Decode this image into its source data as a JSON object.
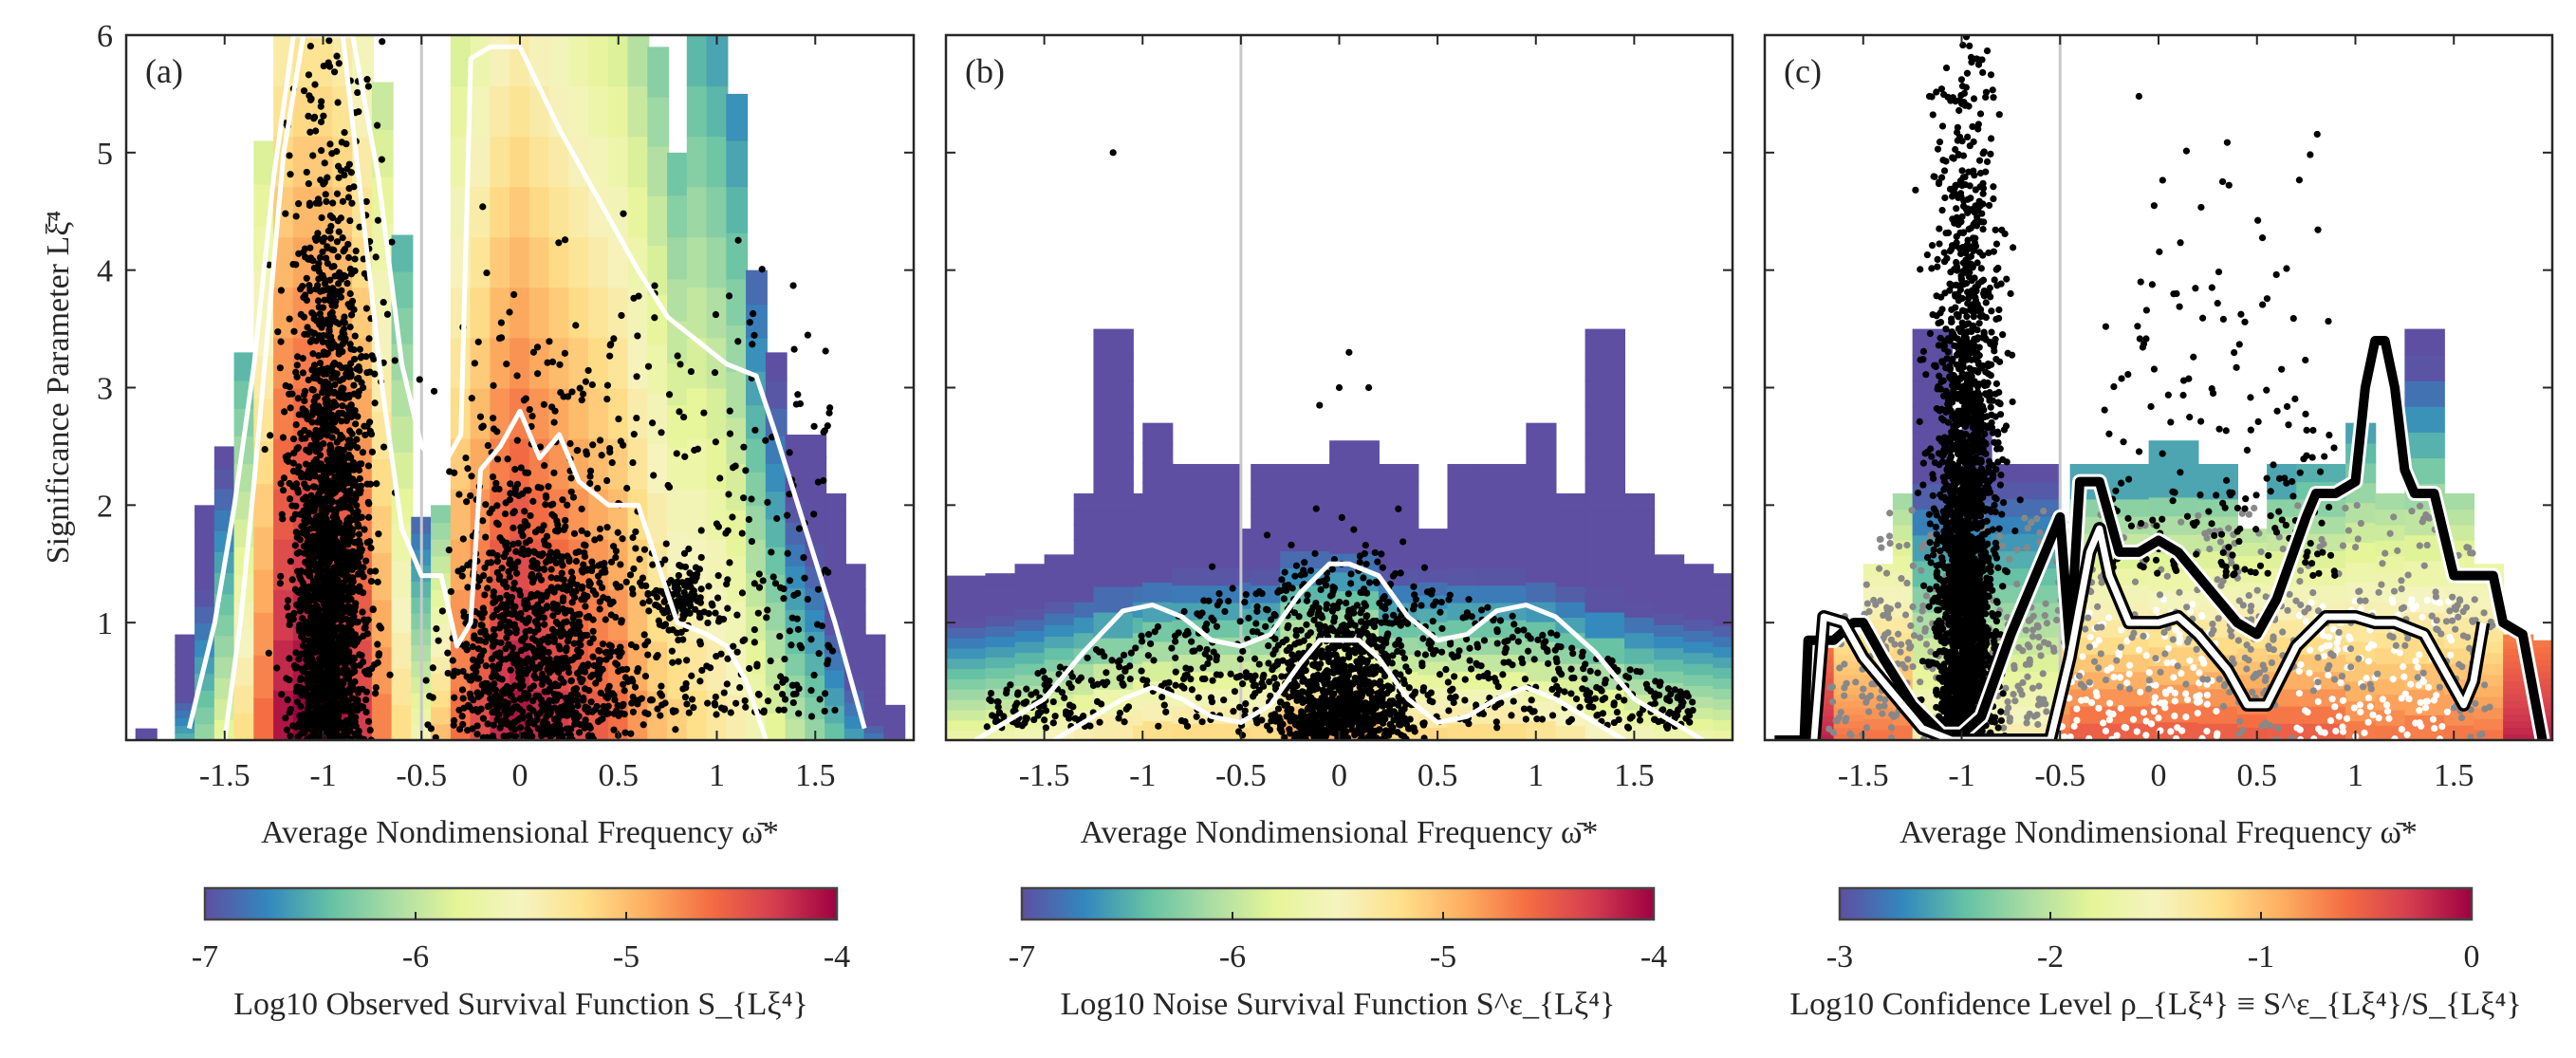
{
  "figure": {
    "ylabel": "Significance Parameter Lξ̄⁴",
    "xlabel": "Average Nondimensional Frequency ω̄*"
  },
  "chart_data": [
    {
      "type": "heatmap",
      "panel": "(a)",
      "title": "",
      "xlabel": "Average Nondimensional Frequency ω̄*",
      "ylabel": "Significance Parameter Lξ̄⁴",
      "xlim": [
        -2,
        2
      ],
      "ylim": [
        0,
        6
      ],
      "xticks": [
        -1.5,
        -1,
        -0.5,
        0,
        0.5,
        1,
        1.5
      ],
      "xtick_labels": [
        "-1.5",
        "-1",
        "-0.5",
        "0",
        "0.5",
        "1",
        "1.5"
      ],
      "yticks": [
        1,
        2,
        3,
        4,
        5,
        6
      ],
      "ytick_labels": [
        "1",
        "2",
        "3",
        "4",
        "5",
        "6"
      ],
      "reference_line_x": -0.5,
      "grid": false,
      "colorbar": {
        "label": "Log10 Observed Survival Function S_{Lξ⁴}",
        "ticks": [
          -7,
          -6,
          -5,
          -4
        ],
        "tick_labels": [
          "-7",
          "-6",
          "-5",
          "-4"
        ],
        "range": [
          -7,
          -4
        ],
        "colormap": "spectral_r"
      },
      "support_envelope": {
        "x": [
          -1.9,
          -1.7,
          -1.6,
          -1.5,
          -1.4,
          -1.3,
          -1.2,
          -1.1,
          -1.0,
          -0.9,
          -0.8,
          -0.7,
          -0.6,
          -0.5,
          -0.4,
          -0.3,
          -0.2,
          -0.1,
          0.0,
          0.1,
          0.2,
          0.3,
          0.4,
          0.5,
          0.6,
          0.7,
          0.8,
          0.9,
          1.0,
          1.1,
          1.2,
          1.3,
          1.4,
          1.5,
          1.6,
          1.7,
          1.8,
          1.9
        ],
        "ymax": [
          0.1,
          0.9,
          2.0,
          2.5,
          3.3,
          5.1,
          6.0,
          6.0,
          6.0,
          6.0,
          6.0,
          5.6,
          4.3,
          1.9,
          2.0,
          6.0,
          6.0,
          6.0,
          6.0,
          6.0,
          6.0,
          6.0,
          6.0,
          6.0,
          6.0,
          5.9,
          5.0,
          6.0,
          6.0,
          5.5,
          4.0,
          3.3,
          2.6,
          2.6,
          2.1,
          1.5,
          0.9,
          0.3
        ]
      },
      "colormap_columns_log10": [
        -6.8,
        -6.5,
        -6.2,
        -5.8,
        -5.2,
        -4.6,
        -4.1,
        -4.0,
        -4.0,
        -4.1,
        -4.3,
        -4.7,
        -5.2,
        -5.6,
        -5.0,
        -4.6,
        -4.4,
        -4.2,
        -4.1,
        -4.2,
        -4.3,
        -4.4,
        -4.5,
        -4.6,
        -4.8,
        -5.0,
        -5.1,
        -5.2,
        -5.3,
        -5.4,
        -5.6,
        -5.8,
        -6.0,
        -6.2,
        -6.4,
        -6.6,
        -6.8,
        -6.9
      ],
      "contours": [
        {
          "level": -6,
          "x": [
            -1.68,
            -1.55,
            -1.45,
            -1.35,
            -1.25,
            -1.15,
            -1.0,
            -0.85,
            -0.72,
            -0.6,
            -0.5,
            -0.4,
            -0.3,
            -0.25,
            -0.15,
            0.0,
            0.2,
            0.4,
            0.6,
            0.75,
            0.9,
            1.05,
            1.2,
            1.3,
            1.45,
            1.6,
            1.75
          ],
          "y": [
            0.1,
            1.0,
            2.0,
            3.2,
            4.8,
            6.0,
            6.0,
            6.0,
            4.8,
            3.2,
            2.5,
            2.3,
            2.6,
            5.8,
            5.9,
            5.9,
            5.2,
            4.6,
            4.0,
            3.6,
            3.4,
            3.2,
            3.1,
            2.6,
            1.8,
            1.0,
            0.1
          ]
        },
        {
          "level": -5,
          "x": [
            -1.5,
            -1.42,
            -1.35,
            -1.28,
            -1.2,
            -1.1,
            -0.9,
            -0.8,
            -0.7,
            -0.6,
            -0.5,
            -0.4,
            -0.32,
            -0.25,
            -0.2,
            -0.1,
            0.0,
            0.1,
            0.2,
            0.3,
            0.45,
            0.6,
            0.7,
            0.8,
            0.95,
            1.05,
            1.15,
            1.25
          ],
          "y": [
            0.0,
            1.0,
            2.2,
            3.5,
            5.0,
            6.0,
            6.0,
            4.5,
            3.0,
            1.8,
            1.4,
            1.4,
            0.8,
            1.0,
            2.3,
            2.5,
            2.8,
            2.4,
            2.6,
            2.2,
            2.0,
            2.0,
            1.5,
            1.0,
            0.9,
            0.8,
            0.5,
            0.0
          ]
        }
      ],
      "scatter_note": "dense black points concentrated at x≈-1 (0–6) and x≈0 to 0.3 (0–3), sparse elsewhere"
    },
    {
      "type": "heatmap",
      "panel": "(b)",
      "xlabel": "Average Nondimensional Frequency ω̄*",
      "xlim": [
        -2,
        2
      ],
      "ylim": [
        0,
        6
      ],
      "xticks": [
        -1.5,
        -1,
        -0.5,
        0,
        0.5,
        1,
        1.5
      ],
      "xtick_labels": [
        "-1.5",
        "-1",
        "-0.5",
        "0",
        "0.5",
        "1",
        "1.5"
      ],
      "yticks": [
        1,
        2,
        3,
        4,
        5,
        6
      ],
      "reference_line_x": -0.5,
      "grid": false,
      "colorbar": {
        "label": "Log10 Noise Survival Function S^ε_{Lξ⁴}",
        "ticks": [
          -7,
          -6,
          -5,
          -4
        ],
        "tick_labels": [
          "-7",
          "-6",
          "-5",
          "-4"
        ],
        "range": [
          -7,
          -4
        ],
        "colormap": "spectral_r"
      },
      "support_envelope": {
        "x_edges": [
          -2.0,
          -1.8,
          -1.65,
          -1.5,
          -1.35,
          -1.25,
          -1.05,
          -1.0,
          -0.85,
          -0.72,
          -0.5,
          -0.45,
          -0.3,
          -0.05,
          0.2,
          0.4,
          0.55,
          0.7,
          0.95,
          1.1,
          1.25,
          1.45,
          1.6,
          1.75,
          1.9,
          2.0
        ],
        "ymax": [
          1.4,
          1.42,
          1.5,
          1.58,
          2.1,
          3.5,
          2.1,
          2.7,
          2.35,
          2.35,
          1.8,
          2.35,
          2.35,
          2.55,
          2.35,
          1.8,
          2.35,
          2.35,
          2.7,
          2.1,
          3.5,
          2.1,
          1.58,
          1.5,
          1.42,
          1.4
        ]
      },
      "contours": [
        {
          "level": -6,
          "x": [
            -1.85,
            -1.7,
            -1.5,
            -1.3,
            -1.1,
            -0.95,
            -0.8,
            -0.65,
            -0.5,
            -0.35,
            -0.2,
            -0.05,
            0.05,
            0.2,
            0.35,
            0.5,
            0.65,
            0.8,
            0.95,
            1.1,
            1.3,
            1.5,
            1.7,
            1.85
          ],
          "y": [
            0.0,
            0.15,
            0.35,
            0.75,
            1.1,
            1.15,
            1.05,
            0.85,
            0.8,
            0.9,
            1.25,
            1.5,
            1.5,
            1.4,
            1.05,
            0.85,
            0.9,
            1.1,
            1.15,
            1.05,
            0.75,
            0.35,
            0.15,
            0.0
          ]
        },
        {
          "level": -5,
          "x": [
            -1.45,
            -1.3,
            -1.1,
            -0.95,
            -0.8,
            -0.65,
            -0.5,
            -0.35,
            -0.2,
            -0.1,
            0.0,
            0.1,
            0.2,
            0.35,
            0.5,
            0.65,
            0.8,
            0.95,
            1.1,
            1.3,
            1.45
          ],
          "y": [
            0.0,
            0.15,
            0.35,
            0.45,
            0.35,
            0.2,
            0.15,
            0.3,
            0.65,
            0.85,
            0.85,
            0.85,
            0.7,
            0.35,
            0.15,
            0.2,
            0.35,
            0.45,
            0.35,
            0.15,
            0.0
          ]
        }
      ],
      "scatter_note": "dense black points near x≈0 (0–1.5), spread cloud from -1.8 to 1.8 below y≈2.5, outlier at (-1.15, 5.0)"
    },
    {
      "type": "heatmap",
      "panel": "(c)",
      "xlabel": "Average Nondimensional Frequency ω̄*",
      "xlim": [
        -2,
        2
      ],
      "ylim": [
        0,
        6
      ],
      "xticks": [
        -1.5,
        -1,
        -0.5,
        0,
        0.5,
        1,
        1.5
      ],
      "xtick_labels": [
        "-1.5",
        "-1",
        "-0.5",
        "0",
        "0.5",
        "1",
        "1.5"
      ],
      "yticks": [
        1,
        2,
        3,
        4,
        5,
        6
      ],
      "reference_line_x": -0.5,
      "grid": false,
      "colorbar": {
        "label": "Log10 Confidence Level ρ_{Lξ⁴} ≡ S^ε_{Lξ⁴}/S_{Lξ⁴}",
        "ticks": [
          -3,
          -2,
          -1,
          0
        ],
        "tick_labels": [
          "-3",
          "-2",
          "-1",
          "0"
        ],
        "range": [
          -3,
          0
        ],
        "colormap": "spectral_r"
      },
      "support_envelope": {
        "x_edges": [
          -2.0,
          -1.8,
          -1.65,
          -1.5,
          -1.35,
          -1.25,
          -1.05,
          -1.0,
          -0.85,
          -0.72,
          -0.5,
          -0.45,
          -0.3,
          -0.05,
          0.2,
          0.4,
          0.55,
          0.7,
          0.95,
          1.1,
          1.25,
          1.45,
          1.6,
          1.75,
          1.9,
          2.0
        ],
        "ymax": [
          0.0,
          0.85,
          0.9,
          1.5,
          2.1,
          3.5,
          2.1,
          2.7,
          2.35,
          2.35,
          1.8,
          2.35,
          2.35,
          2.55,
          2.35,
          1.8,
          2.35,
          2.35,
          2.7,
          2.1,
          3.5,
          2.1,
          1.5,
          0.9,
          0.85,
          0.0
        ]
      },
      "contours": [
        {
          "level": -2,
          "color": "#000000",
          "x": [
            -1.95,
            -1.8,
            -1.78,
            -1.65,
            -1.55,
            -1.5,
            -1.4,
            -1.25,
            -1.1,
            -1.0,
            -0.9,
            -0.75,
            -0.6,
            -0.5,
            -0.45,
            -0.4,
            -0.3,
            -0.2,
            -0.1,
            0.0,
            0.1,
            0.2,
            0.3,
            0.4,
            0.5,
            0.6,
            0.75,
            0.8,
            0.9,
            1.0,
            1.05,
            1.1,
            1.15,
            1.2,
            1.25,
            1.3,
            1.4,
            1.5,
            1.55,
            1.7,
            1.75,
            1.85,
            1.95
          ],
          "y": [
            0.0,
            0.0,
            0.85,
            0.85,
            1.0,
            1.0,
            0.7,
            0.3,
            0.05,
            0.05,
            0.2,
            0.9,
            1.5,
            1.9,
            0.8,
            2.2,
            2.2,
            1.6,
            1.6,
            1.7,
            1.6,
            1.4,
            1.2,
            1.0,
            0.9,
            1.2,
            1.9,
            2.1,
            2.1,
            2.2,
            3.0,
            3.4,
            3.4,
            3.0,
            2.3,
            2.1,
            2.1,
            1.4,
            1.4,
            1.4,
            1.0,
            0.9,
            0.0
          ]
        },
        {
          "level": -1,
          "color": "#ffffff",
          "x": [
            -1.75,
            -1.7,
            -1.6,
            -1.5,
            -1.35,
            -1.2,
            -1.05,
            -0.55,
            -0.45,
            -0.35,
            -0.3,
            -0.25,
            -0.15,
            0.0,
            0.1,
            0.2,
            0.35,
            0.45,
            0.55,
            0.7,
            0.85,
            1.0,
            1.1,
            1.2,
            1.35,
            1.45,
            1.55,
            1.6,
            1.65
          ],
          "y": [
            0.0,
            1.05,
            1.0,
            0.7,
            0.4,
            0.1,
            0.0,
            0.0,
            0.7,
            1.6,
            1.8,
            1.4,
            1.0,
            1.0,
            1.05,
            0.9,
            0.6,
            0.3,
            0.3,
            0.8,
            1.05,
            1.05,
            1.0,
            1.0,
            0.9,
            0.6,
            0.3,
            0.5,
            1.0
          ]
        }
      ],
      "scatter_note": "points colored by significance: black (low confidence) dense column near x≈-1 up to 6, gray mid band, white in high-confidence red regions"
    }
  ]
}
